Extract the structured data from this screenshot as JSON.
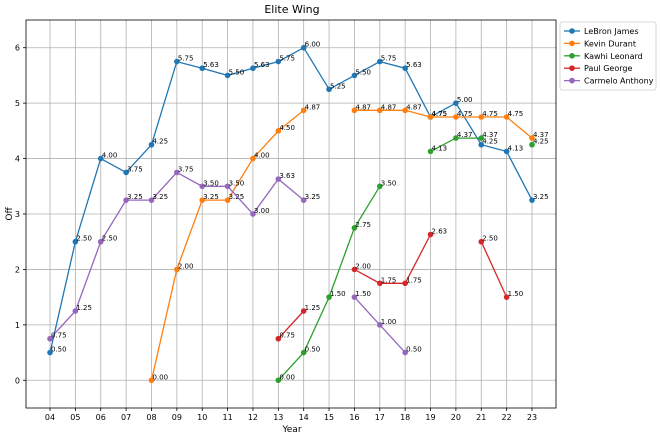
{
  "chart_data": {
    "type": "line",
    "title": "Elite Wing",
    "xlabel": "Year",
    "ylabel": "Off",
    "categories": [
      "04",
      "05",
      "06",
      "07",
      "08",
      "09",
      "10",
      "11",
      "12",
      "13",
      "14",
      "15",
      "16",
      "17",
      "18",
      "19",
      "20",
      "21",
      "22",
      "23"
    ],
    "ylim": [
      -0.5,
      6.5
    ],
    "yticks": [
      0,
      1,
      2,
      3,
      4,
      5,
      6
    ],
    "grid": true,
    "legend_position": "top-right",
    "series": [
      {
        "name": "LeBron James",
        "color": "#1f77b4",
        "values": [
          0.5,
          2.5,
          4.0,
          3.75,
          4.25,
          5.75,
          5.63,
          5.5,
          5.63,
          5.75,
          6.0,
          5.25,
          5.5,
          5.75,
          5.63,
          4.75,
          5.0,
          4.25,
          4.13,
          3.25
        ],
        "labels": [
          "0.50",
          "2.50",
          "4.00",
          "3.75",
          "4.25",
          "5.75",
          "5.63",
          "5.50",
          "5.63",
          "5.75",
          "6.00",
          "5.25",
          "5.50",
          "5.75",
          "5.63",
          "4.75",
          "5.00",
          "4.25",
          "4.13",
          "3.25"
        ]
      },
      {
        "name": "Kevin Durant",
        "color": "#ff7f0e",
        "values": [
          null,
          null,
          null,
          null,
          0.0,
          2.0,
          3.25,
          3.25,
          4.0,
          4.5,
          4.87,
          null,
          4.87,
          4.87,
          4.87,
          4.75,
          4.75,
          4.75,
          4.75,
          4.37
        ],
        "labels": [
          null,
          null,
          null,
          null,
          "0.00",
          "2.00",
          "3.25",
          "3.25",
          "4.00",
          "4.50",
          "4.87",
          null,
          "4.87",
          "4.87",
          "4.87",
          "4.75",
          "4.75",
          "4.75",
          "4.75",
          "4.37"
        ]
      },
      {
        "name": "Kawhi Leonard",
        "color": "#2ca02c",
        "values": [
          null,
          null,
          null,
          null,
          null,
          null,
          null,
          null,
          null,
          0.0,
          0.5,
          1.5,
          2.75,
          3.5,
          null,
          4.13,
          4.37,
          4.37,
          null,
          4.25
        ],
        "labels": [
          null,
          null,
          null,
          null,
          null,
          null,
          null,
          null,
          null,
          "0.00",
          "0.50",
          "1.50",
          "2.75",
          "3.50",
          null,
          "4.13",
          "4.37",
          "4.37",
          null,
          "4.25"
        ]
      },
      {
        "name": "Paul George",
        "color": "#d62728",
        "values": [
          null,
          null,
          null,
          null,
          null,
          null,
          null,
          null,
          null,
          0.75,
          1.25,
          null,
          2.0,
          1.75,
          1.75,
          2.63,
          null,
          2.5,
          1.5,
          null
        ],
        "labels": [
          null,
          null,
          null,
          null,
          null,
          null,
          null,
          null,
          null,
          "0.75",
          "1.25",
          null,
          "2.00",
          "1.75",
          "1.75",
          "2.63",
          null,
          "2.50",
          "1.50",
          null
        ]
      },
      {
        "name": "Carmelo Anthony",
        "color": "#9467bd",
        "values": [
          0.75,
          1.25,
          2.5,
          3.25,
          3.25,
          3.75,
          3.5,
          3.5,
          3.0,
          3.63,
          3.25,
          null,
          1.5,
          1.0,
          0.5,
          null,
          null,
          null,
          null,
          null
        ],
        "labels": [
          "0.75",
          "1.25",
          "2.50",
          "3.25",
          "3.25",
          "3.75",
          "3.50",
          "3.50",
          "3.00",
          "3.63",
          "3.25",
          null,
          "1.50",
          "1.00",
          "0.50",
          null,
          null,
          null,
          null,
          null
        ]
      }
    ]
  }
}
